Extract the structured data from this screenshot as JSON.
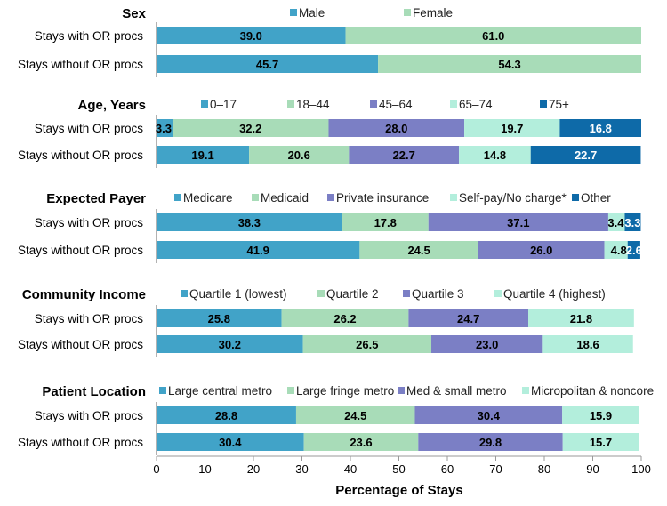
{
  "chart_data": {
    "type": "bar",
    "orientation": "horizontal",
    "stacked": true,
    "xlabel": "Percentage of Stays",
    "xlim": [
      0,
      100
    ],
    "xticks": [
      0,
      10,
      20,
      30,
      40,
      50,
      60,
      70,
      80,
      90,
      100
    ],
    "grid": false,
    "legend_placement": "top of each panel",
    "categories": [
      "Stays with OR procs",
      "Stays without OR procs"
    ],
    "colors": {
      "blue": "#41a3c8",
      "green": "#a8dcb8",
      "purple": "#7b7fc5",
      "mint": "#b3eedc",
      "darkblue": "#0e6aa8"
    },
    "panels": [
      {
        "title": "Sex",
        "series": [
          {
            "name": "Male",
            "color": "#41a3c8",
            "values": [
              39.0,
              45.7
            ]
          },
          {
            "name": "Female",
            "color": "#a8dcb8",
            "values": [
              61.0,
              54.3
            ]
          }
        ]
      },
      {
        "title": "Age, Years",
        "series": [
          {
            "name": "0–17",
            "color": "#41a3c8",
            "values": [
              3.3,
              19.1
            ]
          },
          {
            "name": "18–44",
            "color": "#a8dcb8",
            "values": [
              32.2,
              20.6
            ]
          },
          {
            "name": "45–64",
            "color": "#7b7fc5",
            "values": [
              28.0,
              22.7
            ]
          },
          {
            "name": "65–74",
            "color": "#b3eedc",
            "values": [
              19.7,
              14.8
            ]
          },
          {
            "name": "75+",
            "color": "#0e6aa8",
            "values": [
              16.8,
              22.7
            ]
          }
        ]
      },
      {
        "title": "Expected Payer",
        "series": [
          {
            "name": "Medicare",
            "color": "#41a3c8",
            "values": [
              38.3,
              41.9
            ]
          },
          {
            "name": "Medicaid",
            "color": "#a8dcb8",
            "values": [
              17.8,
              24.5
            ]
          },
          {
            "name": "Private insurance",
            "color": "#7b7fc5",
            "values": [
              37.1,
              26.0
            ]
          },
          {
            "name": "Self-pay/No charge*",
            "color": "#b3eedc",
            "values": [
              3.4,
              4.8
            ]
          },
          {
            "name": "Other",
            "color": "#0e6aa8",
            "values": [
              3.3,
              2.6
            ]
          }
        ]
      },
      {
        "title": "Community Income",
        "series": [
          {
            "name": "Quartile 1 (lowest)",
            "color": "#41a3c8",
            "values": [
              25.8,
              30.2
            ]
          },
          {
            "name": "Quartile 2",
            "color": "#a8dcb8",
            "values": [
              26.2,
              26.5
            ]
          },
          {
            "name": "Quartile 3",
            "color": "#7b7fc5",
            "values": [
              24.7,
              23.0
            ]
          },
          {
            "name": "Quartile 4 (highest)",
            "color": "#b3eedc",
            "values": [
              21.8,
              18.6
            ]
          }
        ]
      },
      {
        "title": "Patient Location",
        "series": [
          {
            "name": "Large central metro",
            "color": "#41a3c8",
            "values": [
              28.8,
              30.4
            ]
          },
          {
            "name": "Large fringe metro",
            "color": "#a8dcb8",
            "values": [
              24.5,
              23.6
            ]
          },
          {
            "name": "Med & small metro",
            "color": "#7b7fc5",
            "values": [
              30.4,
              29.8
            ]
          },
          {
            "name": "Micropolitan & noncore",
            "color": "#b3eedc",
            "values": [
              15.9,
              15.7
            ]
          }
        ]
      }
    ]
  }
}
